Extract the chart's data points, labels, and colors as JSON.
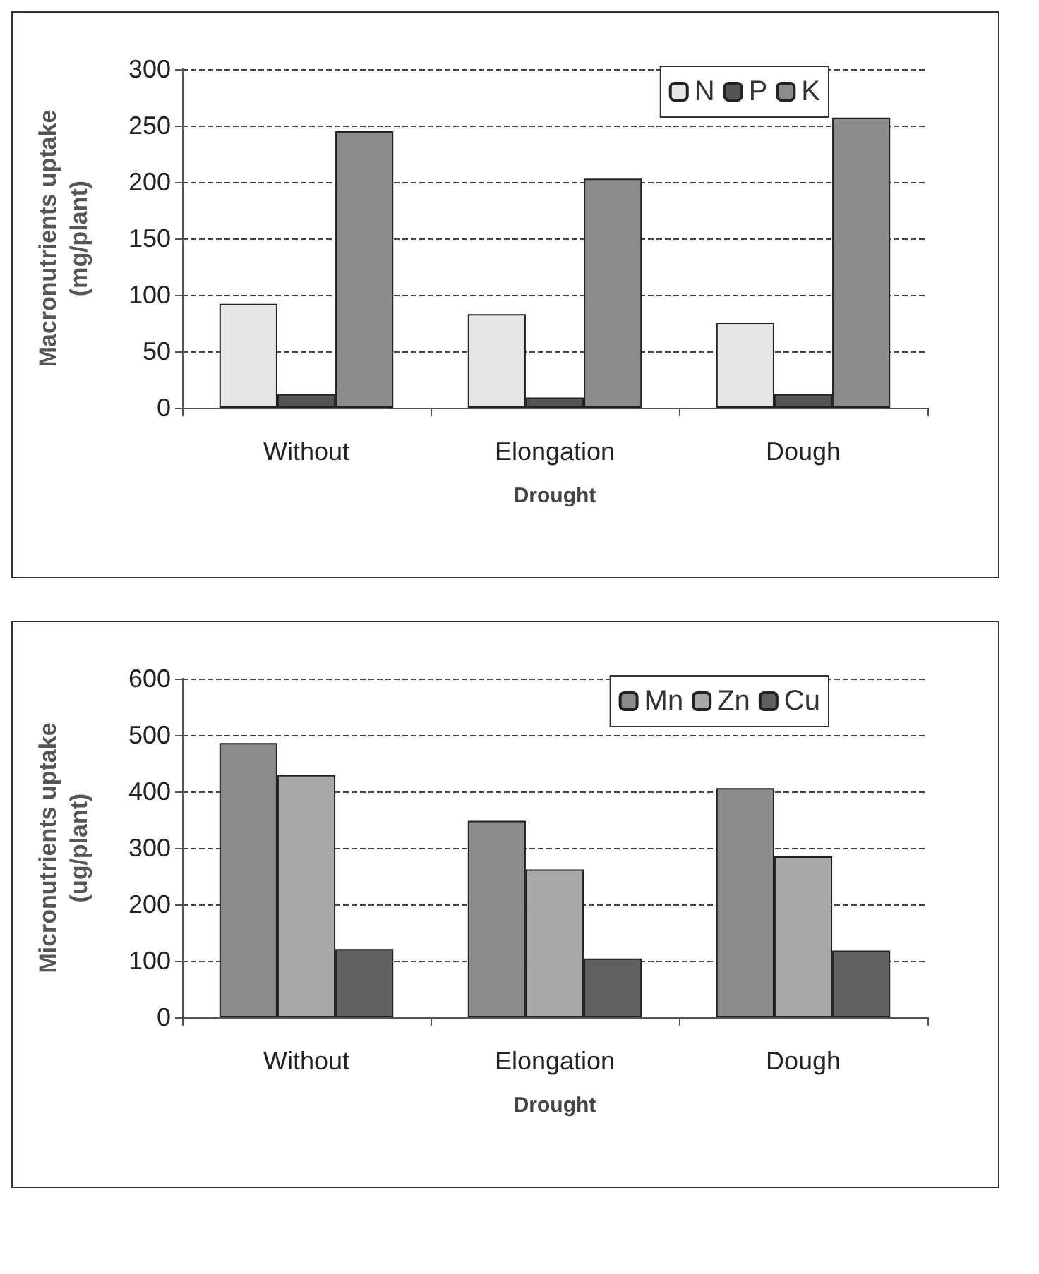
{
  "chart_data": [
    {
      "type": "bar",
      "categories": [
        "Without",
        "Elongation",
        "Dough"
      ],
      "xlabel": "Drought",
      "ylabel": "Macronutrients uptake\n(mg/plant)",
      "ylim": [
        0,
        300
      ],
      "yticks": [
        0,
        50,
        100,
        150,
        200,
        250,
        300
      ],
      "grid": "y",
      "legend": "top right",
      "series": [
        {
          "name": "N",
          "color": "#e6e6e6",
          "values": [
            92,
            83,
            75
          ]
        },
        {
          "name": "P",
          "color": "#555555",
          "values": [
            12,
            9,
            12
          ]
        },
        {
          "name": "K",
          "color": "#8c8c8c",
          "values": [
            245,
            203,
            257
          ]
        }
      ]
    },
    {
      "type": "bar",
      "categories": [
        "Without",
        "Elongation",
        "Dough"
      ],
      "xlabel": "Drought",
      "ylabel": "Micronutrients uptake\n(ug/plant)",
      "ylim": [
        0,
        600
      ],
      "yticks": [
        0,
        100,
        200,
        300,
        400,
        500,
        600
      ],
      "grid": "y",
      "legend": "top right",
      "series": [
        {
          "name": "Mn",
          "color": "#8c8c8c",
          "values": [
            486,
            348,
            406
          ]
        },
        {
          "name": "Zn",
          "color": "#a8a8a8",
          "values": [
            429,
            262,
            285
          ]
        },
        {
          "name": "Cu",
          "color": "#606060",
          "values": [
            121,
            104,
            118
          ]
        }
      ]
    }
  ]
}
